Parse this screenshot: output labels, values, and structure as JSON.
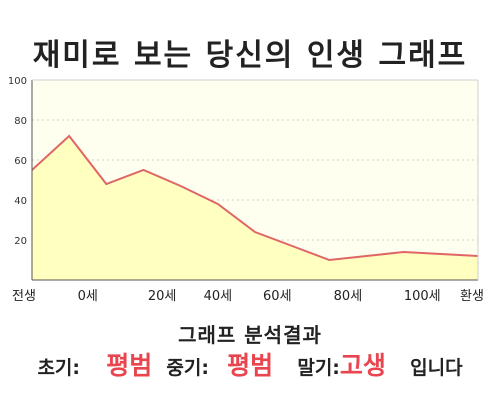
{
  "title": "재미로 보는 당신의 인생 그래프",
  "chart_data": {
    "type": "area",
    "x": [
      0,
      1,
      2,
      3,
      4,
      5,
      6,
      7,
      8,
      9,
      10,
      11,
      12
    ],
    "values": [
      55,
      72,
      48,
      55,
      47,
      38,
      24,
      17,
      10,
      12,
      14,
      13,
      12
    ],
    "xticks": [
      {
        "x": 0,
        "label": "전생"
      },
      {
        "x": 1.5,
        "label": "0세"
      },
      {
        "x": 3.5,
        "label": "20세"
      },
      {
        "x": 5,
        "label": "40세"
      },
      {
        "x": 6.6,
        "label": "60세"
      },
      {
        "x": 8.5,
        "label": "80세"
      },
      {
        "x": 10.5,
        "label": "100세"
      },
      {
        "x": 12,
        "label": "환생"
      }
    ],
    "yticks": [
      20,
      40,
      60,
      80,
      100
    ],
    "ylim": [
      0,
      100
    ],
    "grid": true,
    "line_color": "#e06666",
    "fill_color": "#ffffc0",
    "plot_bg": "#fffff0"
  },
  "result": {
    "heading": "그래프 분석결과",
    "early_label": "초기:",
    "early_value": "평범",
    "mid_label": "중기:",
    "mid_value": "평범",
    "late_label": "말기:",
    "late_value": "고생",
    "suffix": "입니다",
    "value_color": "#e8454e"
  }
}
